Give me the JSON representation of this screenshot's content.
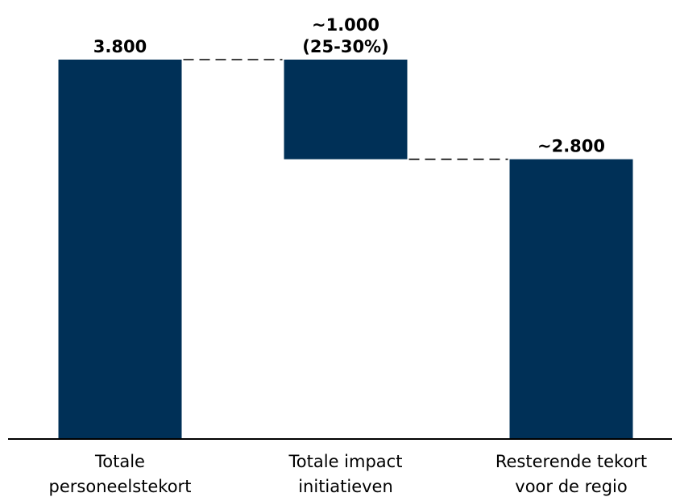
{
  "chart_data": {
    "type": "bar",
    "subtype": "waterfall",
    "categories": [
      [
        "Totale",
        "personeelstekort"
      ],
      [
        "Totale impact",
        "initiatieven"
      ],
      [
        "Resterende tekort",
        "voor de regio"
      ]
    ],
    "bars": [
      {
        "kind": "total",
        "start": 0,
        "end": 3800,
        "labels": [
          "3.800"
        ]
      },
      {
        "kind": "decrease",
        "start": 2800,
        "end": 3800,
        "labels": [
          "~1.000",
          "(25-30%)"
        ]
      },
      {
        "kind": "total",
        "start": 0,
        "end": 2800,
        "labels": [
          "~2.800"
        ]
      }
    ],
    "ylim": [
      0,
      3800
    ],
    "bar_color": "#003057",
    "connector_color": "#000000",
    "axis_color": "#000000",
    "grid": false,
    "connectors": "dashed"
  }
}
